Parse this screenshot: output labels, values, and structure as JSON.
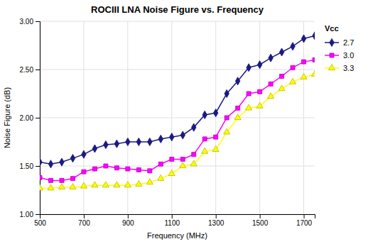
{
  "chart_data": {
    "type": "line",
    "title": "ROCIII LNA Noise Figure vs. Frequency",
    "xlabel": "Frequency (MHz)",
    "ylabel": "Noise Figure (dB)",
    "legend_title": "Vcc",
    "x": [
      500,
      550,
      600,
      650,
      700,
      750,
      800,
      850,
      900,
      950,
      1000,
      1050,
      1100,
      1150,
      1200,
      1250,
      1300,
      1350,
      1400,
      1450,
      1500,
      1550,
      1600,
      1650,
      1700,
      1750
    ],
    "xlim": [
      500,
      1750
    ],
    "xticks": [
      500,
      700,
      900,
      1100,
      1300,
      1500,
      1700
    ],
    "ylim": [
      1.0,
      3.0
    ],
    "yticks": [
      {
        "value": 1.0,
        "label": "1.00"
      },
      {
        "value": 1.5,
        "label": "1.50"
      },
      {
        "value": 2.0,
        "label": "2.00"
      },
      {
        "value": 2.5,
        "label": "2.50"
      },
      {
        "value": 3.0,
        "label": "3.00"
      }
    ],
    "grid": true,
    "legend": "right",
    "series": [
      {
        "name": "2.7",
        "color": "#1a1a8c",
        "marker": "diamond",
        "values": [
          1.54,
          1.52,
          1.54,
          1.58,
          1.62,
          1.68,
          1.72,
          1.73,
          1.75,
          1.75,
          1.75,
          1.78,
          1.8,
          1.82,
          1.9,
          2.03,
          2.05,
          2.25,
          2.38,
          2.52,
          2.55,
          2.62,
          2.68,
          2.74,
          2.82,
          2.85
        ]
      },
      {
        "name": "3.0",
        "color": "#FF00FF",
        "marker": "square",
        "values": [
          1.38,
          1.35,
          1.35,
          1.37,
          1.44,
          1.47,
          1.5,
          1.48,
          1.47,
          1.46,
          1.45,
          1.52,
          1.57,
          1.57,
          1.62,
          1.78,
          1.8,
          2.0,
          2.1,
          2.25,
          2.27,
          2.35,
          2.43,
          2.52,
          2.58,
          2.6
        ]
      },
      {
        "name": "3.3",
        "color": "#FFFF00",
        "marker": "triangle",
        "values": [
          1.27,
          1.27,
          1.28,
          1.28,
          1.29,
          1.3,
          1.3,
          1.3,
          1.3,
          1.31,
          1.33,
          1.37,
          1.42,
          1.5,
          1.52,
          1.65,
          1.67,
          1.85,
          2.0,
          2.1,
          2.12,
          2.22,
          2.3,
          2.37,
          2.42,
          2.45
        ]
      }
    ]
  }
}
